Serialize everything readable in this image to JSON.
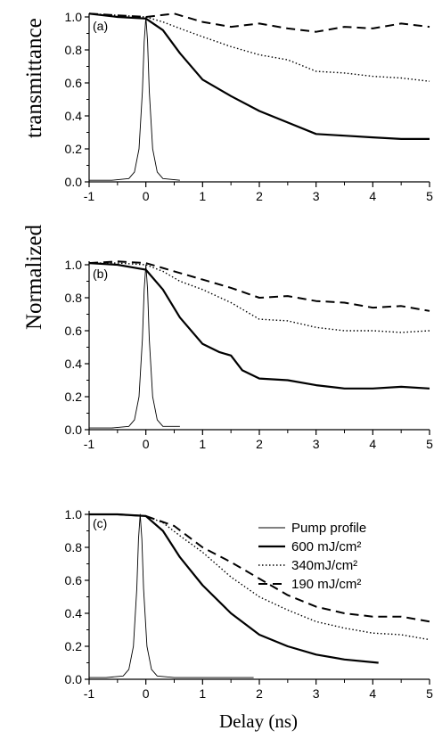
{
  "figure": {
    "ylabel_left": "Normalized",
    "ylabel_right": "transmittance",
    "xlabel": "Delay (ns)"
  },
  "legend": {
    "entries": [
      {
        "label": "Pump profile",
        "style": "thin"
      },
      {
        "label": "600 mJ/cm²",
        "style": "thick"
      },
      {
        "label": "340mJ/cm²",
        "style": "dotted"
      },
      {
        "label": "190 mJ/cm²",
        "style": "dashed"
      }
    ]
  },
  "chart_data": [
    {
      "type": "line",
      "panel_label": "(a)",
      "xlim": [
        -1,
        5
      ],
      "ylim": [
        0,
        1.0
      ],
      "xticks": [
        "-1",
        "0",
        "1",
        "2",
        "3",
        "4",
        "5"
      ],
      "yticks": [
        "0.0",
        "0.2",
        "0.4",
        "0.6",
        "0.8",
        "1.0"
      ],
      "series": [
        {
          "style": "thin",
          "x": [
            -1.0,
            -0.6,
            -0.3,
            -0.2,
            -0.12,
            -0.06,
            -0.03,
            0.0,
            0.03,
            0.06,
            0.12,
            0.2,
            0.3,
            0.6
          ],
          "y": [
            0.01,
            0.01,
            0.02,
            0.06,
            0.2,
            0.55,
            0.85,
            1.0,
            0.85,
            0.55,
            0.2,
            0.06,
            0.02,
            0.01
          ]
        },
        {
          "style": "thick",
          "x": [
            -1.0,
            -0.5,
            0.0,
            0.3,
            0.6,
            1.0,
            1.5,
            2.0,
            2.5,
            3.0,
            3.5,
            4.0,
            4.5,
            5.0
          ],
          "y": [
            1.02,
            1.0,
            0.99,
            0.92,
            0.78,
            0.62,
            0.52,
            0.43,
            0.36,
            0.29,
            0.28,
            0.27,
            0.26,
            0.26
          ]
        },
        {
          "style": "dotted",
          "x": [
            -1.0,
            -0.5,
            0.0,
            0.3,
            0.6,
            1.0,
            1.5,
            2.0,
            2.5,
            3.0,
            3.5,
            4.0,
            4.5,
            5.0
          ],
          "y": [
            1.02,
            1.01,
            1.0,
            0.97,
            0.93,
            0.88,
            0.82,
            0.77,
            0.74,
            0.67,
            0.66,
            0.64,
            0.63,
            0.61
          ]
        },
        {
          "style": "dashed",
          "x": [
            -1.0,
            -0.5,
            0.0,
            0.5,
            1.0,
            1.5,
            2.0,
            2.5,
            3.0,
            3.5,
            4.0,
            4.5,
            5.0
          ],
          "y": [
            1.02,
            1.01,
            1.0,
            1.02,
            0.97,
            0.94,
            0.96,
            0.93,
            0.91,
            0.94,
            0.93,
            0.96,
            0.94
          ]
        }
      ]
    },
    {
      "type": "line",
      "panel_label": "(b)",
      "xlim": [
        -1,
        5
      ],
      "ylim": [
        0,
        1.0
      ],
      "xticks": [
        "-1",
        "0",
        "1",
        "2",
        "3",
        "4",
        "5"
      ],
      "yticks": [
        "0.0",
        "0.2",
        "0.4",
        "0.6",
        "0.8",
        "1.0"
      ],
      "series": [
        {
          "style": "thin",
          "x": [
            -1.0,
            -0.6,
            -0.3,
            -0.2,
            -0.12,
            -0.06,
            -0.03,
            0.0,
            0.03,
            0.06,
            0.12,
            0.2,
            0.3,
            0.6
          ],
          "y": [
            0.01,
            0.01,
            0.02,
            0.06,
            0.2,
            0.55,
            0.85,
            1.0,
            0.85,
            0.55,
            0.2,
            0.06,
            0.02,
            0.02
          ]
        },
        {
          "style": "thick",
          "x": [
            -1.0,
            -0.5,
            0.0,
            0.3,
            0.6,
            1.0,
            1.3,
            1.5,
            1.7,
            2.0,
            2.5,
            3.0,
            3.5,
            4.0,
            4.5,
            5.0
          ],
          "y": [
            1.01,
            1.0,
            0.97,
            0.85,
            0.68,
            0.52,
            0.47,
            0.45,
            0.36,
            0.31,
            0.3,
            0.27,
            0.25,
            0.25,
            0.26,
            0.25
          ]
        },
        {
          "style": "dotted",
          "x": [
            -1.0,
            -0.5,
            0.0,
            0.3,
            0.6,
            1.0,
            1.5,
            2.0,
            2.5,
            3.0,
            3.5,
            4.0,
            4.5,
            5.0
          ],
          "y": [
            1.01,
            1.01,
            1.0,
            0.96,
            0.9,
            0.85,
            0.77,
            0.67,
            0.66,
            0.62,
            0.6,
            0.6,
            0.59,
            0.6
          ]
        },
        {
          "style": "dashed",
          "x": [
            -1.0,
            -0.5,
            0.0,
            0.5,
            1.0,
            1.5,
            2.0,
            2.5,
            3.0,
            3.5,
            4.0,
            4.5,
            5.0
          ],
          "y": [
            1.01,
            1.02,
            1.01,
            0.96,
            0.91,
            0.86,
            0.8,
            0.81,
            0.78,
            0.77,
            0.74,
            0.75,
            0.72
          ]
        }
      ]
    },
    {
      "type": "line",
      "panel_label": "(c)",
      "xlim": [
        -1,
        5
      ],
      "ylim": [
        0,
        1.0
      ],
      "xticks": [
        "-1",
        "0",
        "1",
        "2",
        "3",
        "4",
        "5"
      ],
      "yticks": [
        "0.0",
        "0.2",
        "0.4",
        "0.6",
        "0.8",
        "1.0"
      ],
      "series": [
        {
          "style": "thin",
          "x": [
            -1.0,
            -0.7,
            -0.4,
            -0.3,
            -0.22,
            -0.16,
            -0.13,
            -0.1,
            -0.07,
            -0.04,
            0.02,
            0.1,
            0.2,
            0.5,
            1.0,
            1.9
          ],
          "y": [
            0.01,
            0.01,
            0.02,
            0.06,
            0.2,
            0.55,
            0.85,
            1.0,
            0.85,
            0.55,
            0.2,
            0.06,
            0.02,
            0.01,
            0.01,
            0.01
          ]
        },
        {
          "style": "thick",
          "x": [
            -1.0,
            -0.5,
            0.0,
            0.3,
            0.6,
            1.0,
            1.5,
            2.0,
            2.5,
            3.0,
            3.5,
            4.1
          ],
          "y": [
            1.0,
            1.0,
            0.99,
            0.9,
            0.74,
            0.57,
            0.4,
            0.27,
            0.2,
            0.15,
            0.12,
            0.1
          ]
        },
        {
          "style": "dotted",
          "x": [
            -1.0,
            -0.5,
            0.0,
            0.3,
            0.6,
            1.0,
            1.5,
            2.0,
            2.5,
            3.0,
            3.5,
            4.0,
            4.5,
            5.0
          ],
          "y": [
            1.0,
            1.0,
            0.99,
            0.95,
            0.87,
            0.77,
            0.62,
            0.5,
            0.42,
            0.35,
            0.31,
            0.28,
            0.27,
            0.24
          ]
        },
        {
          "style": "dashed",
          "x": [
            -1.0,
            -0.5,
            0.0,
            0.5,
            1.0,
            1.5,
            2.0,
            2.5,
            3.0,
            3.5,
            4.0,
            4.5,
            5.0
          ],
          "y": [
            1.0,
            1.0,
            0.99,
            0.93,
            0.8,
            0.71,
            0.61,
            0.51,
            0.44,
            0.4,
            0.38,
            0.38,
            0.35
          ]
        }
      ]
    }
  ]
}
